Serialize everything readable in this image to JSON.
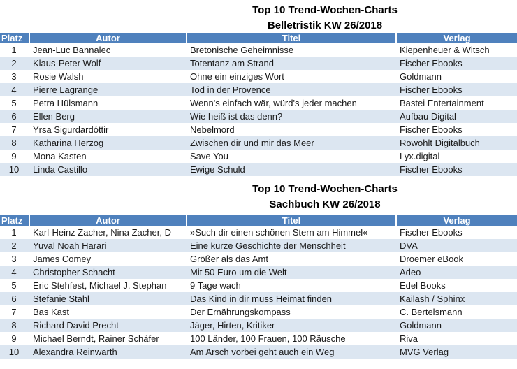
{
  "colors": {
    "header_bg": "#4F81BD",
    "header_text": "#FFFFFF",
    "row_alt_bg": "#DCE6F1",
    "row_bg": "#FFFFFF",
    "title_text": "#000000"
  },
  "tables": [
    {
      "title_line1": "Top 10 Trend-Wochen-Charts",
      "title_line2": "Belletristik KW 26/2018",
      "headers": {
        "platz": "Platz",
        "autor": "Autor",
        "titel": "Titel",
        "verlag": "Verlag"
      },
      "rows": [
        {
          "platz": "1",
          "autor": "Jean-Luc Bannalec",
          "titel": "Bretonische Geheimnisse",
          "verlag": "Kiepenheuer & Witsch"
        },
        {
          "platz": "2",
          "autor": "Klaus-Peter Wolf",
          "titel": "Totentanz am Strand",
          "verlag": "Fischer Ebooks"
        },
        {
          "platz": "3",
          "autor": "Rosie Walsh",
          "titel": "Ohne ein einziges Wort",
          "verlag": "Goldmann"
        },
        {
          "platz": "4",
          "autor": "Pierre Lagrange",
          "titel": "Tod in der Provence",
          "verlag": "Fischer Ebooks"
        },
        {
          "platz": "5",
          "autor": "Petra Hülsmann",
          "titel": "Wenn's einfach wär, würd's jeder machen",
          "verlag": "Bastei Entertainment"
        },
        {
          "platz": "6",
          "autor": "Ellen Berg",
          "titel": "Wie heiß ist das denn?",
          "verlag": "Aufbau Digital"
        },
        {
          "platz": "7",
          "autor": "Yrsa Sigurdardóttir",
          "titel": "Nebelmord",
          "verlag": "Fischer Ebooks"
        },
        {
          "platz": "8",
          "autor": "Katharina Herzog",
          "titel": "Zwischen dir und mir das Meer",
          "verlag": "Rowohlt Digitalbuch"
        },
        {
          "platz": "9",
          "autor": "Mona Kasten",
          "titel": "Save You",
          "verlag": "Lyx.digital"
        },
        {
          "platz": "10",
          "autor": "Linda Castillo",
          "titel": "Ewige Schuld",
          "verlag": "Fischer Ebooks"
        }
      ]
    },
    {
      "title_line1": "Top 10 Trend-Wochen-Charts",
      "title_line2": "Sachbuch KW 26/2018",
      "headers": {
        "platz": "Platz",
        "autor": "Autor",
        "titel": "Titel",
        "verlag": "Verlag"
      },
      "rows": [
        {
          "platz": "1",
          "autor": "Karl-Heinz Zacher, Nina Zacher, D",
          "titel": "»Such dir einen schönen Stern am Himmel«",
          "verlag": "Fischer Ebooks"
        },
        {
          "platz": "2",
          "autor": "Yuval Noah Harari",
          "titel": "Eine kurze Geschichte der Menschheit",
          "verlag": "DVA"
        },
        {
          "platz": "3",
          "autor": "James Comey",
          "titel": "Größer als das Amt",
          "verlag": "Droemer eBook"
        },
        {
          "platz": "4",
          "autor": "Christopher Schacht",
          "titel": "Mit 50 Euro um die Welt",
          "verlag": "Adeo"
        },
        {
          "platz": "5",
          "autor": "Eric Stehfest, Michael J. Stephan",
          "titel": "9 Tage wach",
          "verlag": "Edel Books"
        },
        {
          "platz": "6",
          "autor": "Stefanie Stahl",
          "titel": "Das Kind in dir muss Heimat finden",
          "verlag": "Kailash / Sphinx"
        },
        {
          "platz": "7",
          "autor": "Bas Kast",
          "titel": "Der Ernährungskompass",
          "verlag": "C. Bertelsmann"
        },
        {
          "platz": "8",
          "autor": "Richard David Precht",
          "titel": "Jäger, Hirten, Kritiker",
          "verlag": "Goldmann"
        },
        {
          "platz": "9",
          "autor": "Michael Berndt, Rainer Schäfer",
          "titel": "100 Länder, 100 Frauen, 100 Räusche",
          "verlag": "Riva"
        },
        {
          "platz": "10",
          "autor": "Alexandra Reinwarth",
          "titel": "Am Arsch vorbei geht auch ein Weg",
          "verlag": "MVG Verlag"
        }
      ]
    }
  ]
}
